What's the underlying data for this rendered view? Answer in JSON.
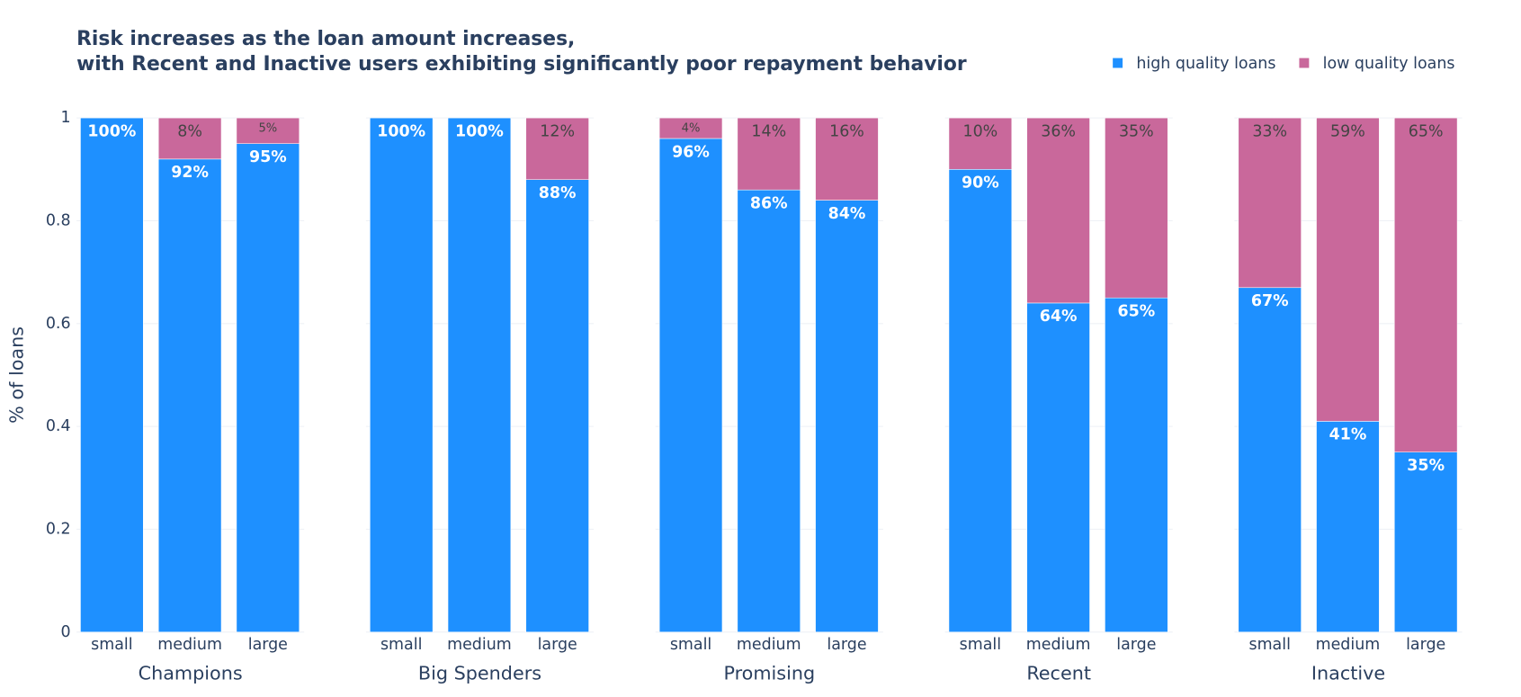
{
  "chart_data": {
    "type": "bar",
    "stacked": true,
    "title": [
      "Risk increases as the loan amount increases,",
      "with Recent and Inactive users exhibiting significantly poor repayment behavior"
    ],
    "ylabel": "% of loans",
    "ylim": [
      0,
      1
    ],
    "yticks": [
      0,
      0.2,
      0.4,
      0.6,
      0.8,
      1
    ],
    "grid": true,
    "series": [
      {
        "name": "high quality loans",
        "color": "#1e90ff"
      },
      {
        "name": "low quality loans",
        "color": "#c9689b"
      }
    ],
    "panels": [
      {
        "title": "Champions",
        "categories": [
          "small",
          "medium",
          "large"
        ],
        "series": [
          {
            "values": [
              1,
              0.92,
              0.95
            ],
            "value_labels": [
              "100%",
              "92%",
              "95%"
            ]
          },
          {
            "values": [
              0,
              0.08,
              0.05
            ],
            "value_labels": [
              null,
              "8%",
              "5%"
            ]
          }
        ]
      },
      {
        "title": "Big Spenders",
        "categories": [
          "small",
          "medium",
          "large"
        ],
        "series": [
          {
            "values": [
              1,
              1,
              0.88
            ],
            "value_labels": [
              "100%",
              "100%",
              "88%"
            ]
          },
          {
            "values": [
              0,
              0,
              0.12
            ],
            "value_labels": [
              null,
              null,
              "12%"
            ]
          }
        ]
      },
      {
        "title": "Promising",
        "categories": [
          "small",
          "medium",
          "large"
        ],
        "series": [
          {
            "values": [
              0.96,
              0.86,
              0.84
            ],
            "value_labels": [
              "96%",
              "86%",
              "84%"
            ]
          },
          {
            "values": [
              0.04,
              0.14,
              0.16
            ],
            "value_labels": [
              "4%",
              "14%",
              "16%"
            ]
          }
        ]
      },
      {
        "title": "Recent",
        "categories": [
          "small",
          "medium",
          "large"
        ],
        "series": [
          {
            "values": [
              0.9,
              0.64,
              0.65
            ],
            "value_labels": [
              "90%",
              "64%",
              "65%"
            ]
          },
          {
            "values": [
              0.1,
              0.36,
              0.35
            ],
            "value_labels": [
              "10%",
              "36%",
              "35%"
            ]
          }
        ]
      },
      {
        "title": "Inactive",
        "categories": [
          "small",
          "medium",
          "large"
        ],
        "series": [
          {
            "values": [
              0.67,
              0.41,
              0.35
            ],
            "value_labels": [
              "67%",
              "41%",
              "35%"
            ]
          },
          {
            "values": [
              0.33,
              0.59,
              0.65
            ],
            "value_labels": [
              "33%",
              "59%",
              "65%"
            ]
          }
        ]
      }
    ]
  }
}
